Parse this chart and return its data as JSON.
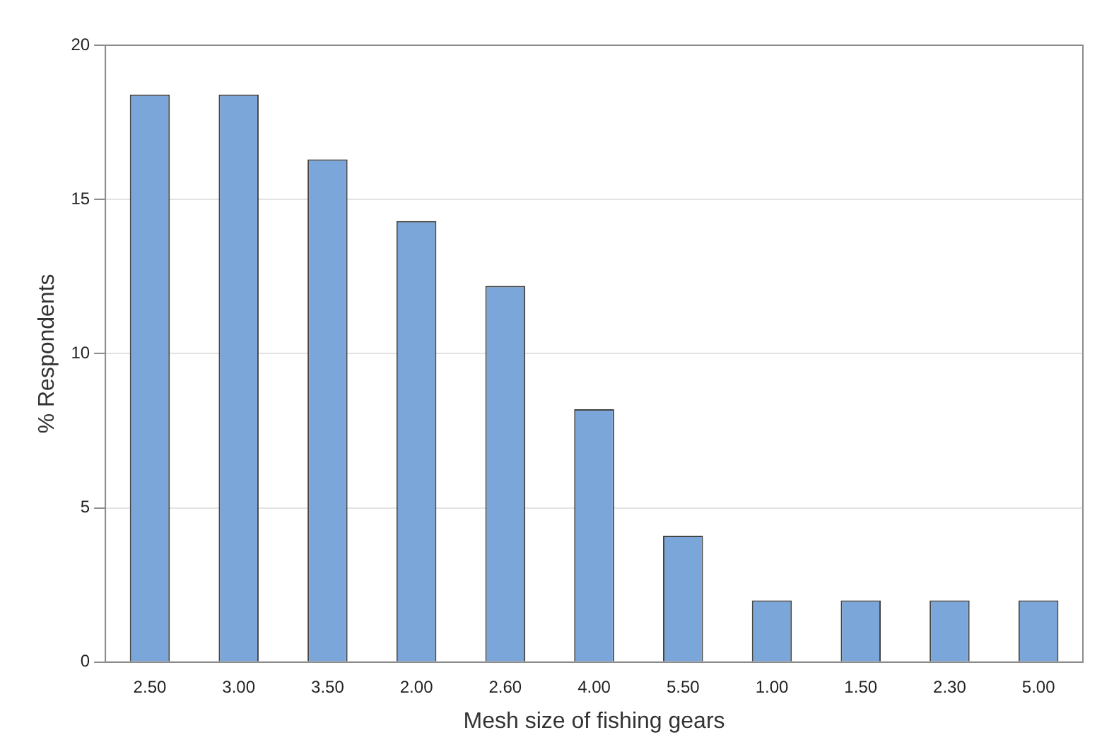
{
  "chart_data": {
    "type": "bar",
    "xlabel": "Mesh size of fishing gears",
    "ylabel": "% Respondents",
    "categories": [
      "2.50",
      "3.00",
      "3.50",
      "2.00",
      "2.60",
      "4.00",
      "5.50",
      "1.00",
      "1.50",
      "2.30",
      "5.00"
    ],
    "values": [
      18.4,
      18.4,
      16.3,
      14.3,
      12.2,
      8.2,
      4.1,
      2.0,
      2.0,
      2.0,
      2.0
    ],
    "color": "#7ba6d9",
    "ylim": [
      0,
      20
    ],
    "yticks": [
      0,
      5,
      10,
      15,
      20
    ],
    "grid": "y",
    "legend": false
  }
}
